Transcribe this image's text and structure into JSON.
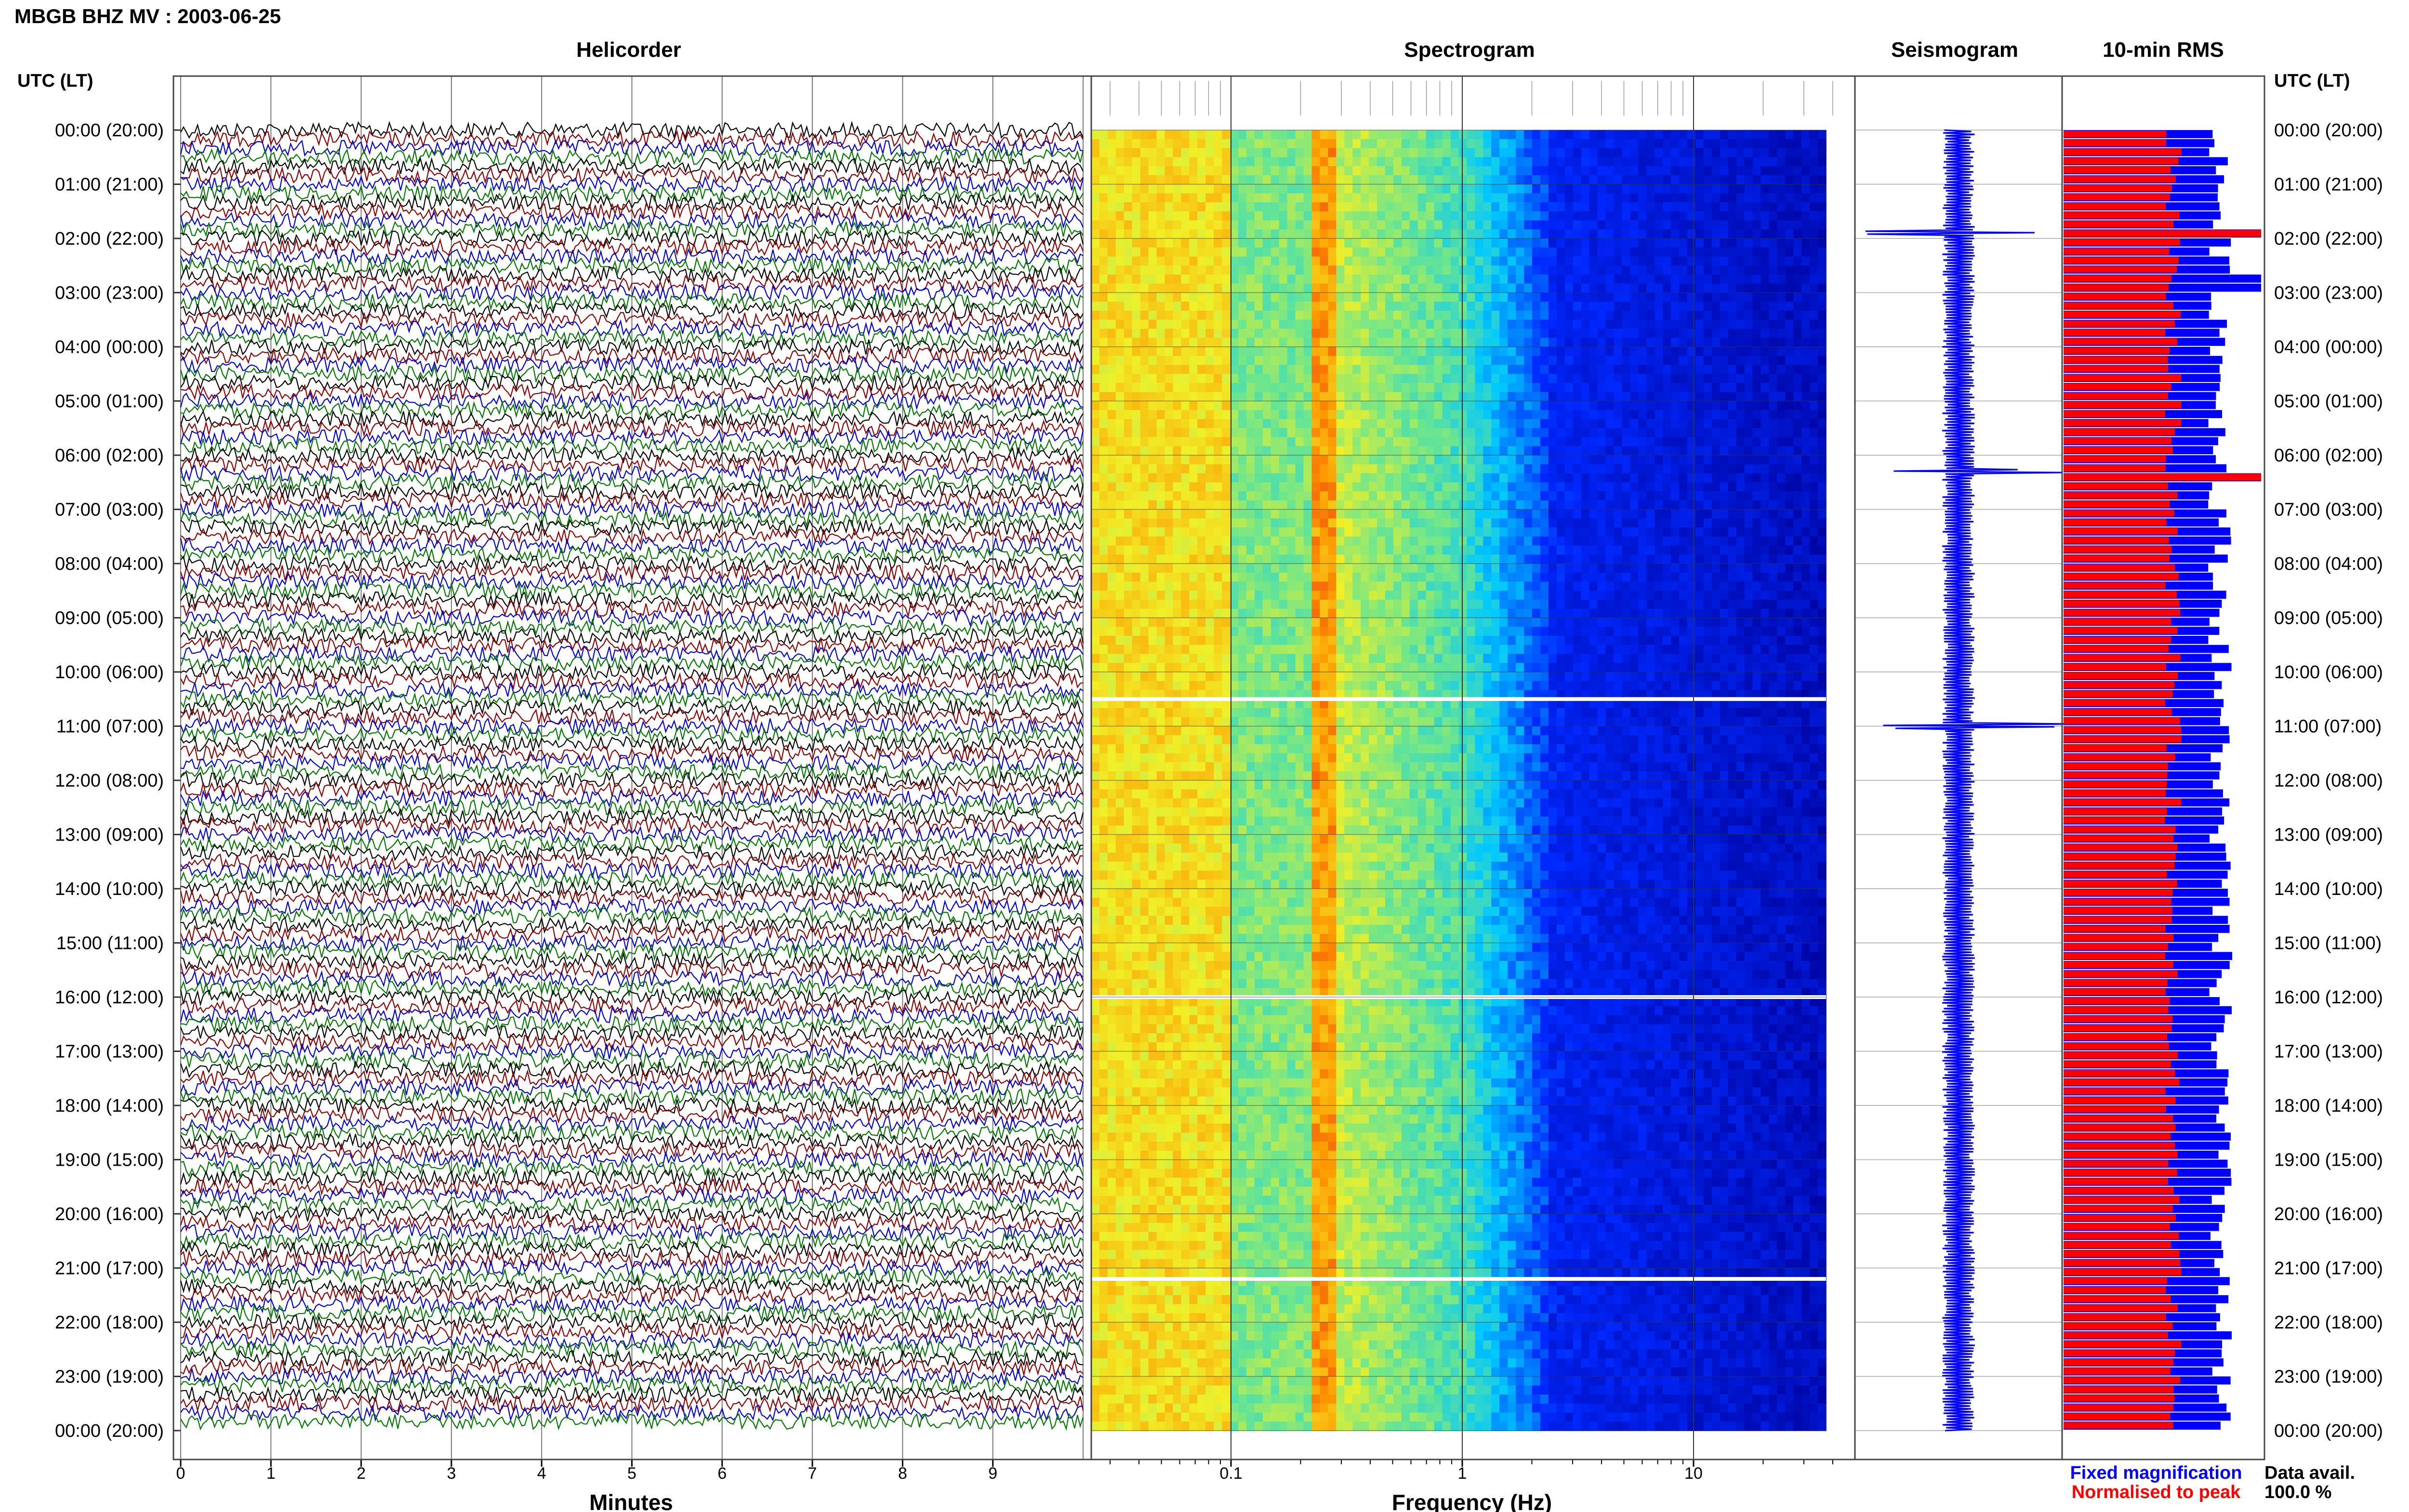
{
  "header": {
    "title": "MBGB BHZ MV : 2003-06-25",
    "left_axis_label": "UTC (LT)",
    "right_axis_label": "UTC (LT)"
  },
  "panels": {
    "helicorder": "Helicorder",
    "spectrogram": "Spectrogram",
    "seismogram": "Seismogram",
    "rms": "10-min RMS"
  },
  "axes": {
    "minutes_label": "Minutes",
    "frequency_label": "Frequency (Hz)"
  },
  "legend": {
    "fixed": "Fixed magnification",
    "normalised": "Normalised to peak",
    "fixed_color": "#0000ff",
    "normalised_color": "#ff0000"
  },
  "availability": {
    "label": "Data avail.",
    "value": "100.0 %"
  },
  "chart_data": [
    {
      "type": "line",
      "title": "Helicorder",
      "xlabel": "Minutes",
      "x_ticks": [
        "0",
        "1",
        "2",
        "3",
        "4",
        "5",
        "6",
        "7",
        "8",
        "9"
      ],
      "xlim": [
        0,
        10
      ],
      "y_ticks": [
        "00:00 (20:00)",
        "01:00 (21:00)",
        "02:00 (22:00)",
        "03:00 (23:00)",
        "04:00 (00:00)",
        "05:00 (01:00)",
        "06:00 (02:00)",
        "07:00 (03:00)",
        "08:00 (04:00)",
        "09:00 (05:00)",
        "10:00 (06:00)",
        "11:00 (07:00)",
        "12:00 (08:00)",
        "13:00 (09:00)",
        "14:00 (10:00)",
        "15:00 (11:00)",
        "16:00 (12:00)",
        "17:00 (13:00)",
        "18:00 (14:00)",
        "19:00 (15:00)",
        "20:00 (16:00)",
        "21:00 (17:00)",
        "22:00 (18:00)",
        "23:00 (19:00)",
        "00:00 (20:00)"
      ],
      "trace_colors": [
        "#000000",
        "#8b0000",
        "#0000cc",
        "#007700"
      ],
      "traces_per_day": 144
    },
    {
      "type": "heatmap",
      "title": "Spectrogram",
      "xlabel": "Frequency (Hz)",
      "x_scale": "log",
      "x_ticks": [
        "0.1",
        "1",
        "10"
      ],
      "gap_hours": [
        10.5,
        16.0,
        21.2
      ]
    },
    {
      "type": "line",
      "title": "Seismogram",
      "events_hours": [
        1.9,
        6.3,
        11.0
      ]
    },
    {
      "type": "bar",
      "title": "10-min RMS",
      "series": [
        {
          "name": "Fixed magnification",
          "color": "#0000ff",
          "peak_hours": [
            1.85,
            2.75,
            6.35
          ]
        },
        {
          "name": "Normalised to peak",
          "color": "#ff0000",
          "peak_hours": [
            1.85,
            6.35
          ]
        }
      ]
    }
  ]
}
